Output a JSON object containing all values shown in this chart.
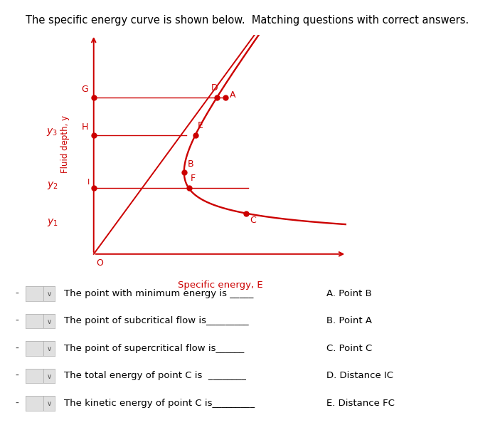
{
  "title": "The specific energy curve is shown below.  Matching questions with correct answers.",
  "title_fontsize": 10.5,
  "curve_color": "#cc0000",
  "bg_color": "#ffffff",
  "axis_label_x": "Specific energy, E",
  "axis_label_y": "Fluid depth, y",
  "questions": [
    "The point with minimum energy is _____",
    "The point of subcritical flow is_________",
    "The point of supercritical flow is______",
    "The total energy of point C is  ________",
    "The kinetic energy of point C is_________"
  ],
  "answers": [
    "A. Point B",
    "B. Point A",
    "C. Point C",
    "D. Distance IC",
    "E. Distance FC"
  ],
  "q_text_color": "#1a1a2e",
  "a_text_color": "#1a1a2e"
}
